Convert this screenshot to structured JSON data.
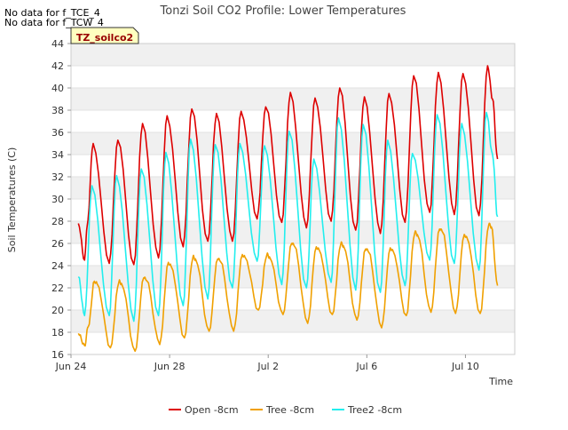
{
  "notes": [
    "No data for f_TCE_4",
    "No data for f_TCW_4"
  ],
  "badge_label": "TZ_soilco2",
  "chart_data": {
    "type": "line",
    "title": "Tonzi Soil CO2 Profile: Lower Temperatures",
    "xlabel": "Time",
    "ylabel": "Soil Temperatures (C)",
    "x_unit": "day",
    "xlim": [
      0,
      18
    ],
    "ylim": [
      16,
      44
    ],
    "yticks": [
      16,
      18,
      20,
      22,
      24,
      26,
      28,
      30,
      32,
      34,
      36,
      38,
      40,
      42,
      44
    ],
    "xticks": [
      {
        "day": 0,
        "label": "Jun 24"
      },
      {
        "day": 4,
        "label": "Jun 28"
      },
      {
        "day": 8,
        "label": "Jul 2"
      },
      {
        "day": 12,
        "label": "Jul 6"
      },
      {
        "day": 16,
        "label": "Jul 10"
      }
    ],
    "grid": "horizontal-bands",
    "legend_position": "bottom",
    "series": [
      {
        "name": "Open -8cm",
        "color": "#dd0000",
        "points": [
          [
            0.3,
            27.8
          ],
          [
            0.55,
            24.5
          ],
          [
            0.65,
            27.5
          ],
          [
            0.9,
            35.0
          ],
          [
            1.55,
            24.2
          ],
          [
            1.9,
            35.3
          ],
          [
            2.55,
            24.1
          ],
          [
            2.9,
            36.8
          ],
          [
            3.55,
            24.7
          ],
          [
            3.9,
            37.5
          ],
          [
            4.55,
            25.7
          ],
          [
            4.9,
            38.1
          ],
          [
            5.55,
            26.2
          ],
          [
            5.9,
            37.7
          ],
          [
            6.55,
            26.2
          ],
          [
            6.9,
            37.9
          ],
          [
            7.55,
            28.2
          ],
          [
            7.9,
            38.3
          ],
          [
            8.55,
            27.9
          ],
          [
            8.9,
            39.6
          ],
          [
            9.55,
            27.4
          ],
          [
            9.9,
            39.1
          ],
          [
            10.55,
            28.0
          ],
          [
            10.9,
            40.0
          ],
          [
            11.55,
            27.2
          ],
          [
            11.9,
            39.2
          ],
          [
            12.55,
            26.9
          ],
          [
            12.9,
            39.5
          ],
          [
            13.55,
            27.9
          ],
          [
            13.9,
            41.1
          ],
          [
            14.55,
            28.8
          ],
          [
            14.9,
            41.4
          ],
          [
            15.55,
            28.6
          ],
          [
            15.9,
            41.3
          ],
          [
            16.55,
            28.5
          ],
          [
            16.9,
            42.0
          ],
          [
            17.1,
            39.0
          ],
          [
            17.3,
            33.6
          ]
        ]
      },
      {
        "name": "Tree -8cm",
        "color": "#f0a000",
        "points": [
          [
            0.3,
            17.9
          ],
          [
            0.55,
            16.8
          ],
          [
            0.7,
            18.5
          ],
          [
            0.95,
            22.6
          ],
          [
            1.05,
            22.4
          ],
          [
            1.6,
            16.6
          ],
          [
            1.95,
            22.6
          ],
          [
            2.05,
            22.4
          ],
          [
            2.6,
            16.3
          ],
          [
            2.95,
            22.9
          ],
          [
            3.05,
            22.7
          ],
          [
            3.6,
            16.9
          ],
          [
            3.95,
            24.3
          ],
          [
            4.05,
            24.0
          ],
          [
            4.6,
            17.5
          ],
          [
            4.95,
            24.8
          ],
          [
            5.05,
            24.6
          ],
          [
            5.6,
            18.1
          ],
          [
            5.95,
            24.6
          ],
          [
            6.05,
            24.4
          ],
          [
            6.6,
            18.1
          ],
          [
            6.95,
            25.0
          ],
          [
            7.05,
            24.8
          ],
          [
            7.6,
            20.0
          ],
          [
            7.95,
            25.0
          ],
          [
            8.05,
            24.8
          ],
          [
            8.6,
            19.6
          ],
          [
            8.95,
            26.0
          ],
          [
            9.05,
            25.8
          ],
          [
            9.6,
            18.8
          ],
          [
            9.95,
            25.7
          ],
          [
            10.05,
            25.5
          ],
          [
            10.6,
            19.6
          ],
          [
            10.95,
            26.0
          ],
          [
            11.05,
            25.8
          ],
          [
            11.6,
            19.1
          ],
          [
            11.95,
            25.5
          ],
          [
            12.05,
            25.3
          ],
          [
            12.6,
            18.4
          ],
          [
            12.95,
            25.6
          ],
          [
            13.05,
            25.4
          ],
          [
            13.6,
            19.5
          ],
          [
            13.95,
            27.0
          ],
          [
            14.05,
            26.8
          ],
          [
            14.6,
            19.8
          ],
          [
            14.95,
            27.3
          ],
          [
            15.05,
            27.1
          ],
          [
            15.6,
            19.7
          ],
          [
            15.95,
            26.8
          ],
          [
            16.05,
            26.6
          ],
          [
            16.6,
            19.7
          ],
          [
            16.95,
            27.7
          ],
          [
            17.05,
            27.5
          ],
          [
            17.3,
            22.2
          ]
        ]
      },
      {
        "name": "Tree2 -8cm",
        "color": "#22eeee",
        "points": [
          [
            0.3,
            23.0
          ],
          [
            0.55,
            19.5
          ],
          [
            0.85,
            31.2
          ],
          [
            1.55,
            19.5
          ],
          [
            1.85,
            32.1
          ],
          [
            2.55,
            19.0
          ],
          [
            2.85,
            32.7
          ],
          [
            3.55,
            19.5
          ],
          [
            3.85,
            34.2
          ],
          [
            4.55,
            20.4
          ],
          [
            4.85,
            35.4
          ],
          [
            5.55,
            21.0
          ],
          [
            5.85,
            34.9
          ],
          [
            6.55,
            22.0
          ],
          [
            6.85,
            35.0
          ],
          [
            7.55,
            24.4
          ],
          [
            7.85,
            34.8
          ],
          [
            8.55,
            22.3
          ],
          [
            8.85,
            36.1
          ],
          [
            9.55,
            22.0
          ],
          [
            9.85,
            33.6
          ],
          [
            10.55,
            22.5
          ],
          [
            10.85,
            37.3
          ],
          [
            11.55,
            21.8
          ],
          [
            11.85,
            36.7
          ],
          [
            12.55,
            21.6
          ],
          [
            12.85,
            35.3
          ],
          [
            13.55,
            22.2
          ],
          [
            13.85,
            34.1
          ],
          [
            14.55,
            24.5
          ],
          [
            14.85,
            37.6
          ],
          [
            15.55,
            24.2
          ],
          [
            15.85,
            36.8
          ],
          [
            16.55,
            23.6
          ],
          [
            16.85,
            37.8
          ],
          [
            17.1,
            34.0
          ],
          [
            17.3,
            28.4
          ]
        ]
      }
    ]
  }
}
